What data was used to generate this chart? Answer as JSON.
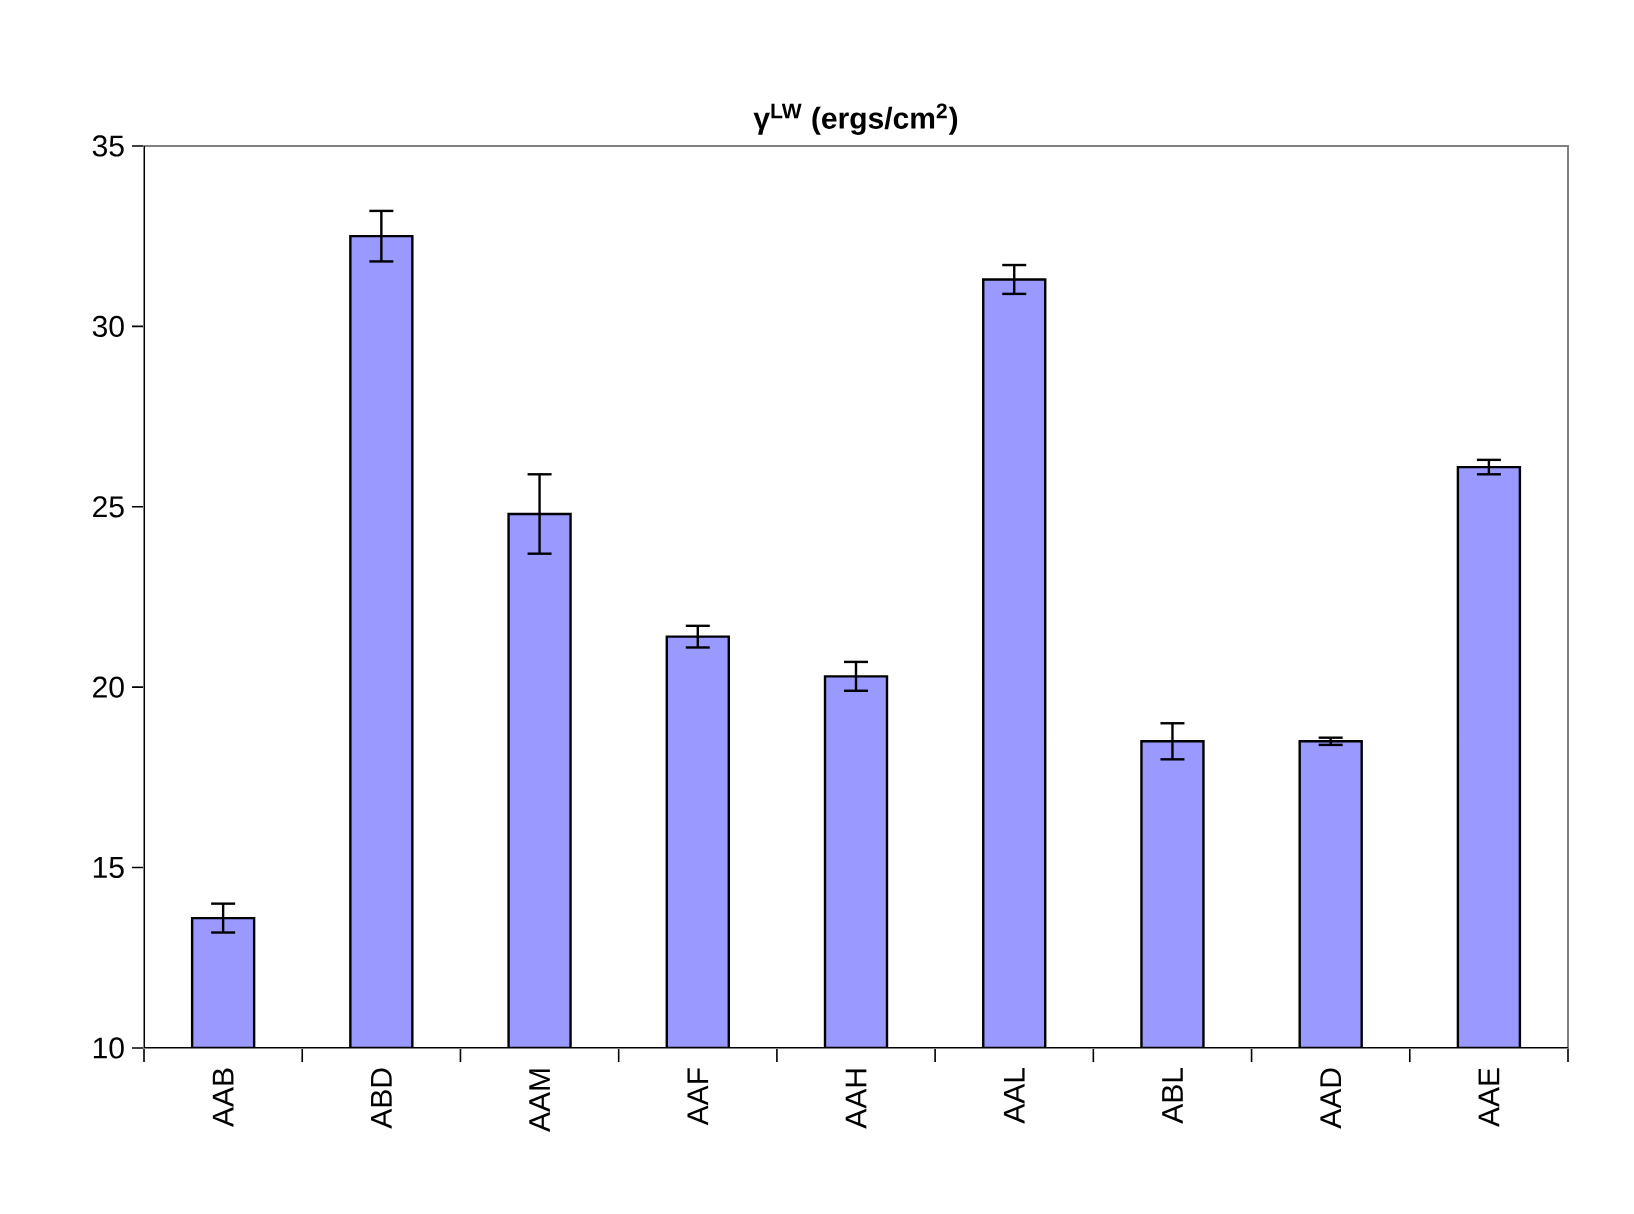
{
  "chart_data": {
    "type": "bar",
    "title": "γ$^{LW}$ (ergs/cm$^{2}$)",
    "categories": [
      "AAB",
      "ABD",
      "AAM",
      "AAF",
      "AAH",
      "AAL",
      "ABL",
      "AAD",
      "AAE"
    ],
    "values": [
      13.6,
      32.5,
      24.8,
      21.4,
      20.3,
      31.3,
      18.5,
      18.5,
      26.1
    ],
    "errors": [
      0.4,
      0.7,
      1.1,
      0.3,
      0.4,
      0.4,
      0.5,
      0.1,
      0.2
    ],
    "color": "#9999ff",
    "ylim": [
      10,
      35
    ],
    "yticks": [
      10,
      15,
      20,
      25,
      30,
      35
    ]
  }
}
